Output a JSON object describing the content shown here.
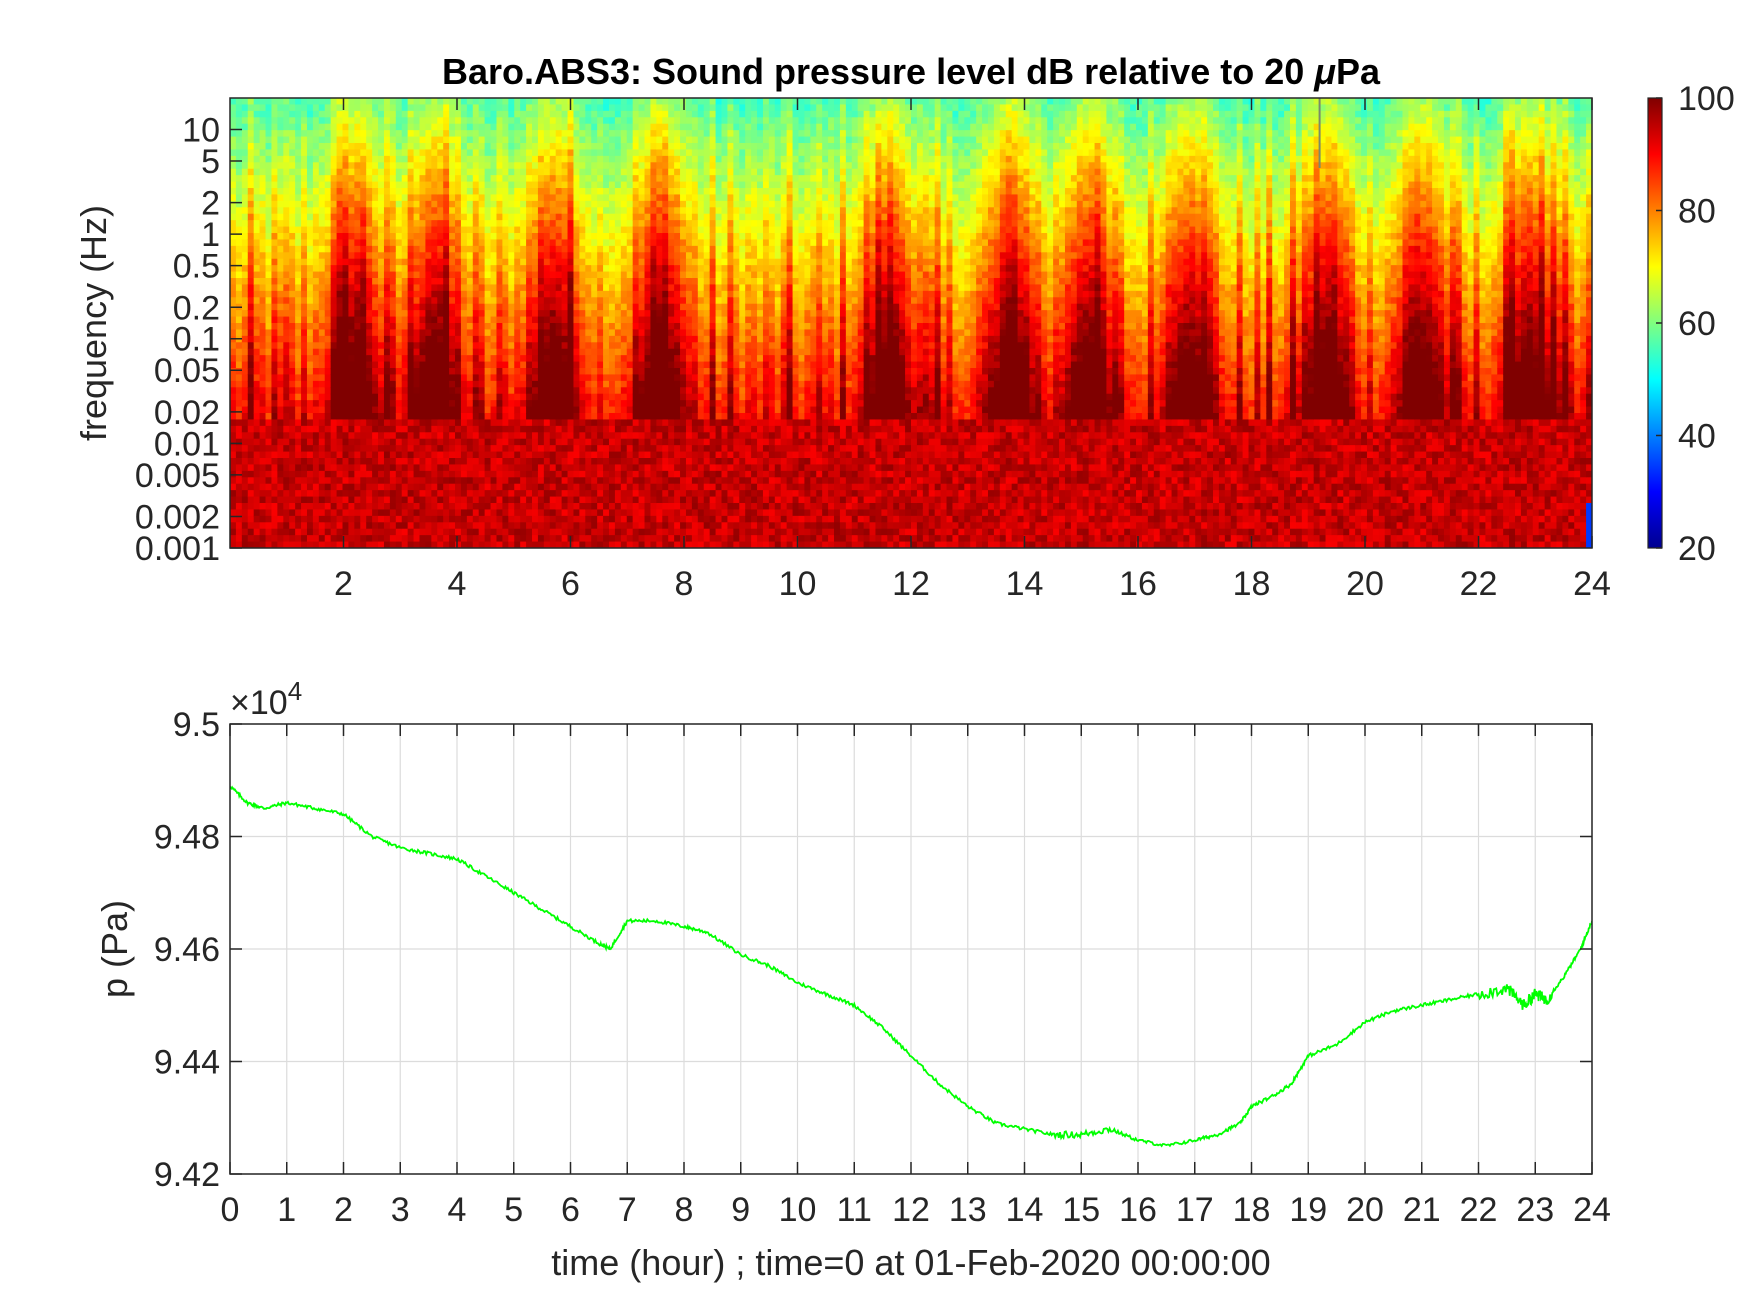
{
  "chart_data": [
    {
      "type": "heatmap",
      "title_prefix": "Baro.ABS3: Sound pressure level dB relative to 20 ",
      "title_mu": "μ",
      "title_suffix": "Pa",
      "ylabel": "frequency (Hz)",
      "xlabel": "",
      "xlim": [
        0,
        24
      ],
      "xticks": [
        2,
        4,
        6,
        8,
        10,
        12,
        14,
        16,
        18,
        20,
        22,
        24
      ],
      "yscale": "log",
      "ylim": [
        0.001,
        20
      ],
      "yticks": [
        "10",
        "5",
        "2",
        "1",
        "0.5",
        "0.2",
        "0.1",
        "0.05",
        "0.02",
        "0.01",
        "0.005",
        "0.002",
        "0.001"
      ],
      "ytick_values": [
        10,
        5,
        2,
        1,
        0.5,
        0.2,
        0.1,
        0.05,
        0.02,
        0.01,
        0.005,
        0.002,
        0.001
      ],
      "colormap": "jet",
      "colorbar": {
        "range": [
          20,
          100
        ],
        "ticks": [
          "100",
          "80",
          "60",
          "40",
          "20"
        ],
        "tick_values": [
          100,
          80,
          60,
          40,
          20
        ]
      },
      "high_activity_hours": [
        2.2,
        3.6,
        5.7,
        7.6,
        11.6,
        13.8,
        15.1,
        16.9,
        19.3,
        21.0,
        22.9
      ],
      "spike_hour": 19.2
    },
    {
      "type": "line",
      "ylabel": "p (Pa)",
      "xlabel": "time (hour) ; time=0 at 01-Feb-2020 00:00:00",
      "exponent_label": "×10",
      "exponent_power": "4",
      "xlim": [
        0,
        24
      ],
      "ylim": [
        9.42,
        9.5
      ],
      "xticks": [
        "0",
        "1",
        "2",
        "3",
        "4",
        "5",
        "6",
        "7",
        "8",
        "9",
        "10",
        "11",
        "12",
        "13",
        "14",
        "15",
        "16",
        "17",
        "18",
        "19",
        "20",
        "21",
        "22",
        "23",
        "24"
      ],
      "yticks": [
        "9.42",
        "9.44",
        "9.46",
        "9.48",
        "9.5"
      ],
      "ytick_values": [
        9.42,
        9.44,
        9.46,
        9.48,
        9.5
      ],
      "grid": true,
      "series": [
        {
          "color": "#00ff00",
          "x": [
            0,
            0.3,
            0.6,
            1.0,
            1.5,
            2.0,
            2.5,
            3.0,
            3.5,
            4.0,
            4.5,
            5.0,
            5.5,
            6.0,
            6.5,
            6.7,
            7.0,
            7.5,
            8.0,
            8.4,
            9.0,
            9.5,
            10.0,
            10.5,
            11.0,
            11.5,
            12.0,
            12.5,
            13.0,
            13.5,
            14.0,
            14.5,
            15.0,
            15.5,
            16.0,
            16.5,
            17.0,
            17.4,
            17.8,
            18.0,
            18.4,
            18.7,
            19.0,
            19.5,
            20.0,
            20.5,
            21.0,
            21.5,
            22.0,
            22.5,
            22.8,
            23.0,
            23.2,
            23.5,
            23.8,
            24.0
          ],
          "y": [
            9.489,
            9.486,
            9.485,
            9.486,
            9.485,
            9.484,
            9.48,
            9.478,
            9.477,
            9.476,
            9.473,
            9.47,
            9.467,
            9.464,
            9.461,
            9.46,
            9.465,
            9.465,
            9.464,
            9.463,
            9.459,
            9.457,
            9.454,
            9.452,
            9.45,
            9.446,
            9.441,
            9.436,
            9.432,
            9.429,
            9.428,
            9.427,
            9.427,
            9.428,
            9.426,
            9.425,
            9.426,
            9.427,
            9.429,
            9.432,
            9.434,
            9.436,
            9.441,
            9.443,
            9.447,
            9.449,
            9.45,
            9.451,
            9.452,
            9.453,
            9.45,
            9.452,
            9.451,
            9.455,
            9.46,
            9.465
          ]
        }
      ]
    }
  ]
}
